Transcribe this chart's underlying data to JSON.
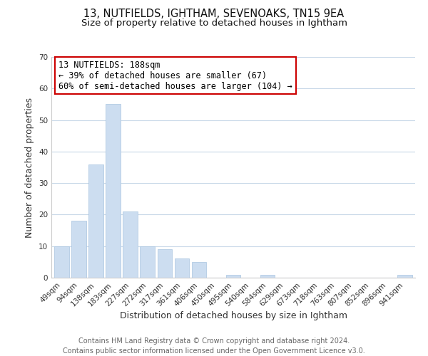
{
  "title": "13, NUTFIELDS, IGHTHAM, SEVENOAKS, TN15 9EA",
  "subtitle": "Size of property relative to detached houses in Ightham",
  "xlabel": "Distribution of detached houses by size in Ightham",
  "ylabel": "Number of detached properties",
  "bar_color": "#ccddf0",
  "bar_edge_color": "#a8c4e0",
  "categories": [
    "49sqm",
    "94sqm",
    "138sqm",
    "183sqm",
    "227sqm",
    "272sqm",
    "317sqm",
    "361sqm",
    "406sqm",
    "450sqm",
    "495sqm",
    "540sqm",
    "584sqm",
    "629sqm",
    "673sqm",
    "718sqm",
    "763sqm",
    "807sqm",
    "852sqm",
    "896sqm",
    "941sqm"
  ],
  "values": [
    10,
    18,
    36,
    55,
    21,
    10,
    9,
    6,
    5,
    0,
    1,
    0,
    1,
    0,
    0,
    0,
    0,
    0,
    0,
    0,
    1
  ],
  "ylim": [
    0,
    70
  ],
  "yticks": [
    0,
    10,
    20,
    30,
    40,
    50,
    60,
    70
  ],
  "annotation_title": "13 NUTFIELDS: 188sqm",
  "annotation_line1": "← 39% of detached houses are smaller (67)",
  "annotation_line2": "60% of semi-detached houses are larger (104) →",
  "annotation_box_color": "#ffffff",
  "annotation_box_edgecolor": "#cc0000",
  "footer_line1": "Contains HM Land Registry data © Crown copyright and database right 2024.",
  "footer_line2": "Contains public sector information licensed under the Open Government Licence v3.0.",
  "background_color": "#ffffff",
  "grid_color": "#c8d8e8",
  "title_fontsize": 10.5,
  "subtitle_fontsize": 9.5,
  "axis_label_fontsize": 9,
  "tick_fontsize": 7.5,
  "footer_fontsize": 7,
  "annotation_fontsize": 8.5
}
